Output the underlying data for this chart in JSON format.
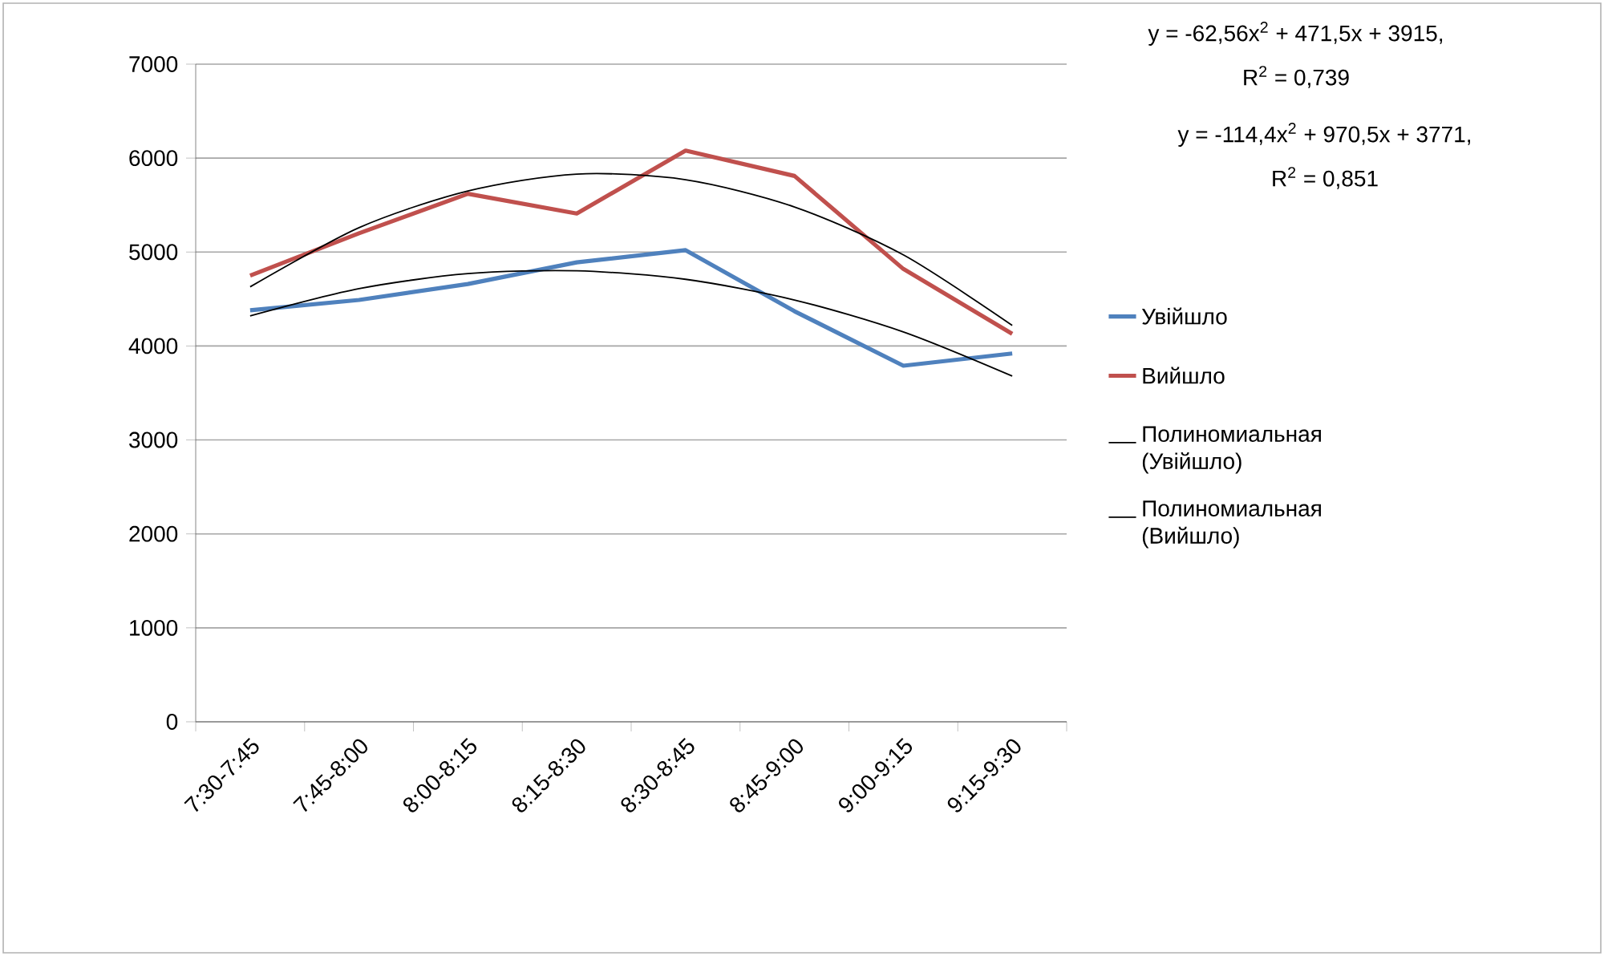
{
  "chart_data": {
    "type": "line",
    "categories": [
      "7:30-7:45",
      "7:45-8:00",
      "8:00-8:15",
      "8:15-8:30",
      "8:30-8:45",
      "8:45-9:00",
      "9:00-9:15",
      "9:15-9:30"
    ],
    "series": [
      {
        "name": "Увійшло",
        "color": "#4f81bd",
        "values": [
          4380,
          4490,
          4660,
          4890,
          5020,
          4370,
          3790,
          3920
        ]
      },
      {
        "name": "Вийшло",
        "color": "#c0504d",
        "values": [
          4750,
          5200,
          5620,
          5410,
          6080,
          5810,
          4820,
          4130
        ]
      },
      {
        "name": "Полиномиальная (Увійшло)",
        "type": "line",
        "color": "#000000",
        "x": [
          "7:30-7:45",
          "7:45-8:00",
          "8:00-8:15",
          "8:15-8:30",
          "8:30-8:45",
          "8:45-9:00",
          "9:00-9:15",
          "9:15-9:30"
        ],
        "values": [
          4320,
          4610,
          4770,
          4800,
          4710,
          4490,
          4150,
          3680
        ]
      },
      {
        "name": "Полиномиальная (Вийшло)",
        "type": "line",
        "color": "#000000",
        "x": [
          "7:30-7:45",
          "7:45-8:00",
          "8:00-8:15",
          "8:15-8:30",
          "8:30-8:45",
          "8:45-9:00",
          "9:00-9:15",
          "9:15-9:30"
        ],
        "values": [
          4630,
          5260,
          5650,
          5830,
          5770,
          5480,
          4970,
          4220
        ]
      }
    ],
    "ylim": [
      0,
      7000
    ],
    "yticks": [
      0,
      1000,
      2000,
      3000,
      4000,
      5000,
      6000,
      7000
    ],
    "grid": "y",
    "legend": "right",
    "marker": "none",
    "annotations": [
      "y = -62,56x$^{2}$ + 471,5x + 3915,",
      "R$^{2}$ = 0,739",
      "y = -114,4x$^{2}$ + 970,5x + 3771,",
      "R$^{2}$ = 0,851"
    ]
  }
}
